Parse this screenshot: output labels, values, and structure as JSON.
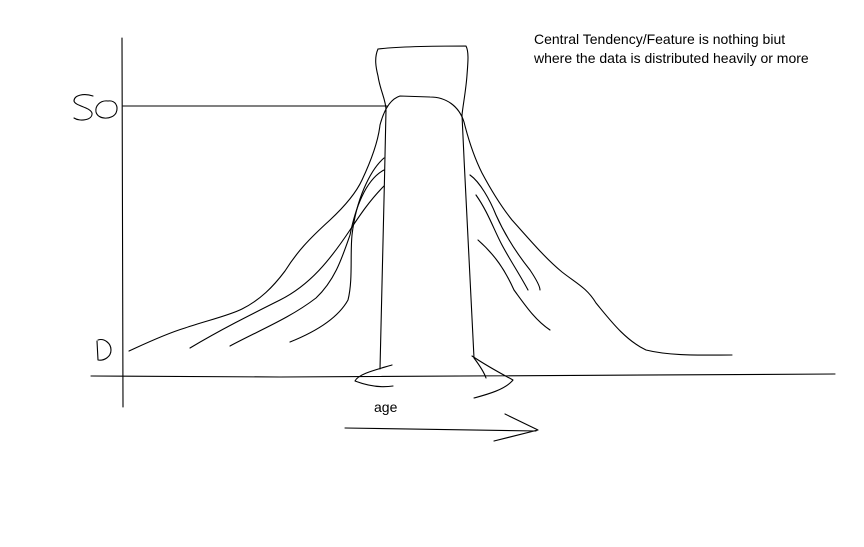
{
  "annotation": {
    "line1": "Central Tendency/Feature is nothing biut",
    "line2": "where the data is distributed heavily or more"
  },
  "axes": {
    "x_label": "age",
    "y_tick_top": "50",
    "y_tick_bottom": "0"
  }
}
